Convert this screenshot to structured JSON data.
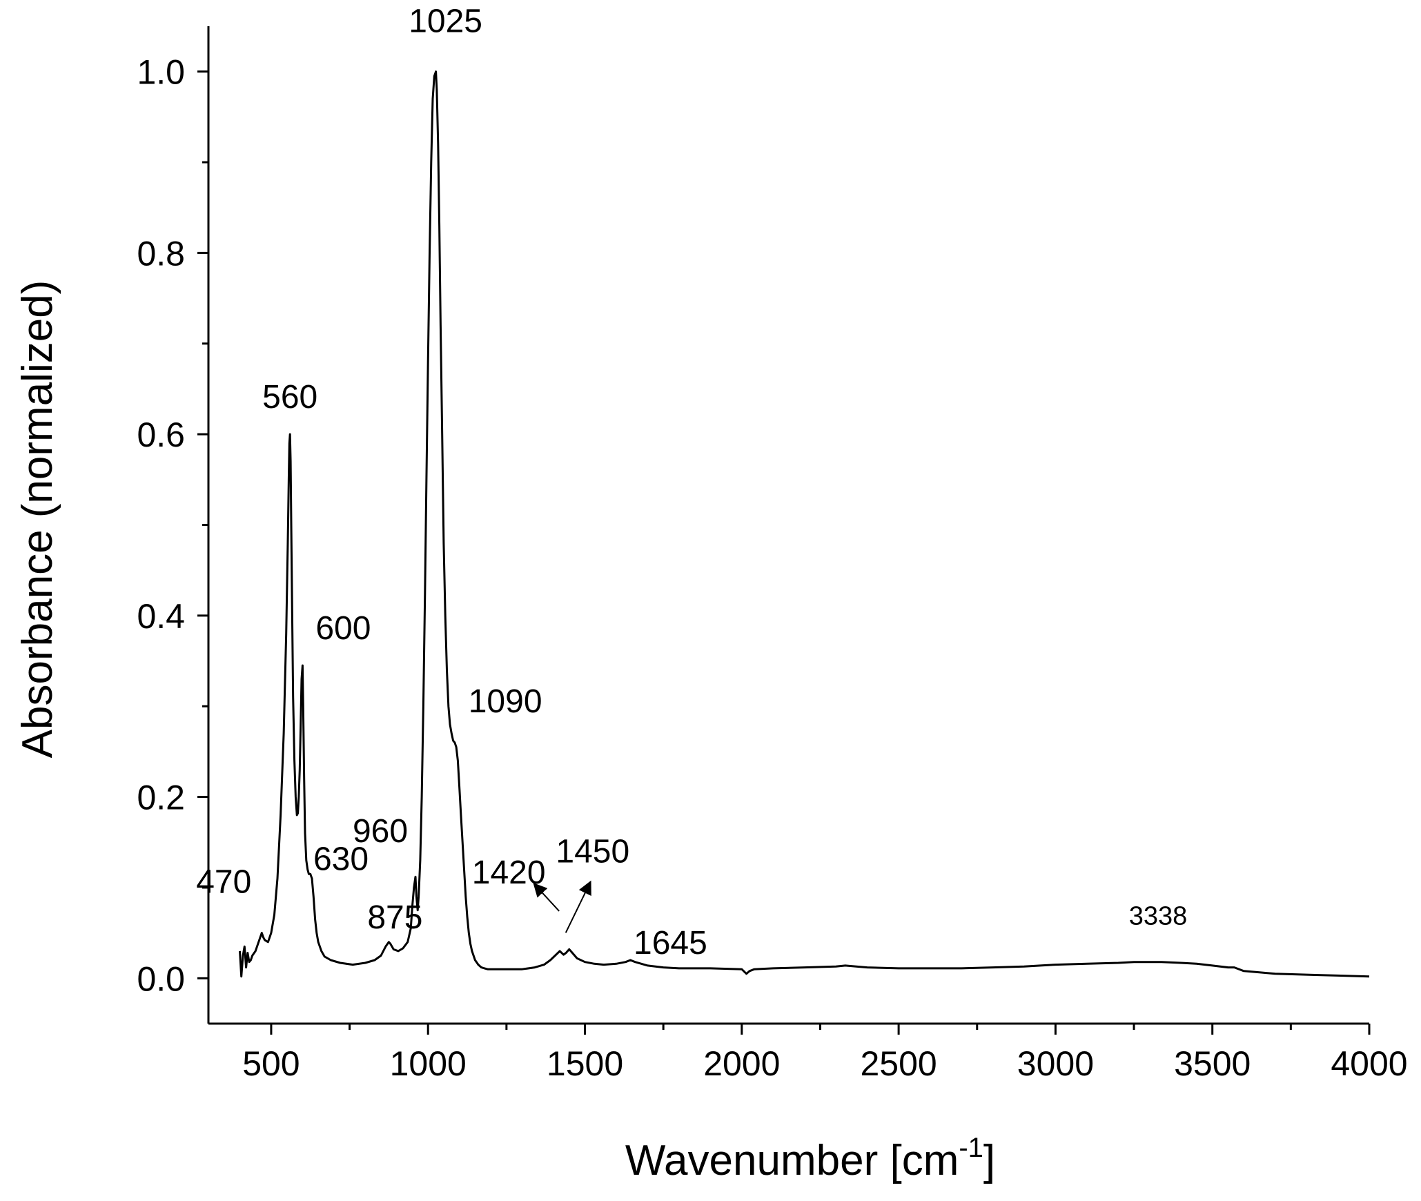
{
  "chart_data": {
    "type": "line",
    "xlabel": "Wavenumber [cm",
    "xlabel_sup": "-1",
    "xlabel_close": "]",
    "ylabel": "Absorbance (normalized)",
    "xlim": [
      300,
      4000
    ],
    "ylim": [
      -0.05,
      1.05
    ],
    "x_ticks": [
      500,
      1000,
      1500,
      2000,
      2500,
      3000,
      3500,
      4000
    ],
    "x_tick_labels": [
      "500",
      "1000",
      "1500",
      "2000",
      "2500",
      "3000",
      "3500",
      "4000"
    ],
    "x_minor_ticks": [
      750,
      1250,
      1750,
      2250,
      2750,
      3250,
      3750
    ],
    "y_ticks": [
      0.0,
      0.2,
      0.4,
      0.6,
      0.8,
      1.0
    ],
    "y_tick_labels": [
      "0.0",
      "0.2",
      "0.4",
      "0.6",
      "0.8",
      "1.0"
    ],
    "y_minor_ticks": [
      0.1,
      0.3,
      0.5,
      0.7,
      0.9
    ],
    "grid": false,
    "line_color": "#000000",
    "series": [
      {
        "x": [
          400,
          405,
          410,
          415,
          420,
          425,
          430,
          435,
          440,
          450,
          460,
          470,
          475,
          480,
          490,
          500,
          510,
          520,
          530,
          540,
          548,
          553,
          556,
          558,
          560,
          562,
          564,
          567,
          570,
          574,
          578,
          582,
          585,
          588,
          591,
          594,
          597,
          600,
          602,
          605,
          608,
          612,
          616,
          620,
          625,
          630,
          635,
          640,
          645,
          650,
          660,
          670,
          690,
          720,
          760,
          800,
          830,
          850,
          865,
          875,
          880,
          890,
          905,
          920,
          935,
          945,
          950,
          955,
          960,
          963,
          967,
          970,
          975,
          980,
          985,
          990,
          995,
          1000,
          1005,
          1010,
          1015,
          1020,
          1025,
          1028,
          1032,
          1036,
          1040,
          1045,
          1050,
          1055,
          1060,
          1065,
          1070,
          1075,
          1080,
          1085,
          1090,
          1095,
          1100,
          1105,
          1110,
          1115,
          1120,
          1125,
          1130,
          1135,
          1140,
          1150,
          1160,
          1170,
          1180,
          1190,
          1200,
          1250,
          1300,
          1340,
          1370,
          1390,
          1405,
          1420,
          1432,
          1440,
          1450,
          1460,
          1475,
          1500,
          1530,
          1560,
          1600,
          1630,
          1645,
          1660,
          1700,
          1750,
          1800,
          1900,
          2000,
          2015,
          2025,
          2040,
          2100,
          2200,
          2300,
          2330,
          2400,
          2500,
          2600,
          2700,
          2800,
          2900,
          3000,
          3100,
          3200,
          3250,
          3300,
          3338,
          3400,
          3450,
          3500,
          3550,
          3570,
          3600,
          3700,
          3800,
          3900,
          4000
        ],
        "y": [
          0.03,
          0.002,
          0.025,
          0.035,
          0.012,
          0.028,
          0.018,
          0.02,
          0.025,
          0.03,
          0.04,
          0.05,
          0.045,
          0.042,
          0.04,
          0.05,
          0.07,
          0.11,
          0.18,
          0.27,
          0.38,
          0.48,
          0.55,
          0.59,
          0.6,
          0.57,
          0.5,
          0.4,
          0.31,
          0.24,
          0.2,
          0.18,
          0.182,
          0.2,
          0.23,
          0.28,
          0.33,
          0.345,
          0.3,
          0.22,
          0.16,
          0.13,
          0.12,
          0.115,
          0.115,
          0.11,
          0.09,
          0.065,
          0.05,
          0.04,
          0.03,
          0.024,
          0.02,
          0.017,
          0.015,
          0.017,
          0.02,
          0.025,
          0.035,
          0.04,
          0.038,
          0.032,
          0.03,
          0.033,
          0.04,
          0.055,
          0.08,
          0.1,
          0.112,
          0.09,
          0.075,
          0.09,
          0.13,
          0.2,
          0.3,
          0.42,
          0.55,
          0.68,
          0.8,
          0.9,
          0.97,
          0.995,
          1.0,
          0.98,
          0.92,
          0.83,
          0.72,
          0.6,
          0.48,
          0.4,
          0.34,
          0.3,
          0.28,
          0.27,
          0.262,
          0.26,
          0.255,
          0.24,
          0.21,
          0.18,
          0.15,
          0.12,
          0.09,
          0.068,
          0.05,
          0.038,
          0.03,
          0.02,
          0.015,
          0.012,
          0.011,
          0.01,
          0.01,
          0.01,
          0.01,
          0.012,
          0.015,
          0.02,
          0.025,
          0.03,
          0.026,
          0.028,
          0.032,
          0.028,
          0.022,
          0.018,
          0.016,
          0.015,
          0.016,
          0.018,
          0.02,
          0.018,
          0.014,
          0.012,
          0.011,
          0.011,
          0.01,
          0.005,
          0.008,
          0.01,
          0.011,
          0.012,
          0.013,
          0.014,
          0.012,
          0.011,
          0.011,
          0.011,
          0.012,
          0.013,
          0.015,
          0.016,
          0.017,
          0.018,
          0.018,
          0.018,
          0.017,
          0.016,
          0.014,
          0.012,
          0.012,
          0.008,
          0.005,
          0.004,
          0.003,
          0.002
        ]
      }
    ],
    "annotations": [
      {
        "text": "470",
        "x": 470,
        "y": 0.05
      },
      {
        "text": "560",
        "x": 560,
        "y": 0.6
      },
      {
        "text": "600",
        "x": 600,
        "y": 0.345
      },
      {
        "text": "630",
        "x": 630,
        "y": 0.115
      },
      {
        "text": "875",
        "x": 875,
        "y": 0.04
      },
      {
        "text": "960",
        "x": 960,
        "y": 0.112
      },
      {
        "text": "1025",
        "x": 1025,
        "y": 1.0
      },
      {
        "text": "1090",
        "x": 1090,
        "y": 0.26
      },
      {
        "text": "1420",
        "x": 1420,
        "y": 0.03,
        "arrow": true
      },
      {
        "text": "1450",
        "x": 1450,
        "y": 0.032,
        "arrow": true
      },
      {
        "text": "1645",
        "x": 1645,
        "y": 0.02
      },
      {
        "text": "3338",
        "x": 3338,
        "y": 0.018
      }
    ]
  }
}
